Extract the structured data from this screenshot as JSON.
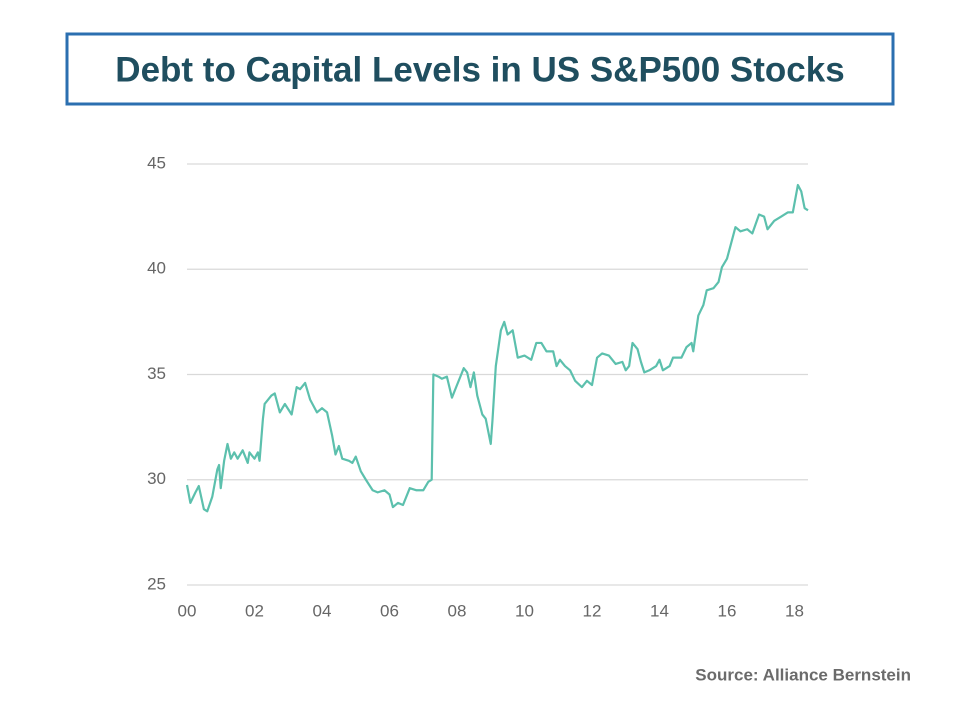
{
  "chart_data": {
    "type": "line",
    "title": "Debt to Capital Levels in US S&P500 Stocks",
    "source": "Source: Alliance Bernstein",
    "xlim": [
      0,
      18.4
    ],
    "xticks": [
      {
        "value": 0,
        "label": "00"
      },
      {
        "value": 2,
        "label": "02"
      },
      {
        "value": 4,
        "label": "04"
      },
      {
        "value": 6,
        "label": "06"
      },
      {
        "value": 8,
        "label": "08"
      },
      {
        "value": 10,
        "label": "10"
      },
      {
        "value": 12,
        "label": "12"
      },
      {
        "value": 14,
        "label": "14"
      },
      {
        "value": 16,
        "label": "16"
      },
      {
        "value": 18,
        "label": "18"
      }
    ],
    "ylim": [
      25,
      45
    ],
    "yticks": [
      25,
      30,
      35,
      40,
      45
    ],
    "grid": true,
    "series": [
      {
        "color": "#5cc0ad",
        "x": [
          0,
          0.1,
          0.25,
          0.35,
          0.5,
          0.6,
          0.75,
          0.9,
          0.95,
          1.0,
          1.1,
          1.2,
          1.3,
          1.4,
          1.5,
          1.65,
          1.8,
          1.85,
          2.0,
          2.1,
          2.15,
          2.25,
          2.3,
          2.5,
          2.6,
          2.75,
          2.9,
          3.1,
          3.25,
          3.35,
          3.5,
          3.65,
          3.85,
          4.0,
          4.15,
          4.3,
          4.4,
          4.5,
          4.6,
          4.8,
          4.9,
          5.0,
          5.15,
          5.3,
          5.5,
          5.65,
          5.85,
          6.0,
          6.1,
          6.25,
          6.4,
          6.6,
          6.8,
          7.0,
          7.15,
          7.25,
          7.3,
          7.45,
          7.55,
          7.7,
          7.85,
          8.0,
          8.1,
          8.2,
          8.3,
          8.4,
          8.5,
          8.6,
          8.75,
          8.85,
          9.0,
          9.05,
          9.15,
          9.3,
          9.4,
          9.5,
          9.65,
          9.8,
          10.0,
          10.2,
          10.35,
          10.5,
          10.65,
          10.85,
          10.95,
          11.05,
          11.2,
          11.35,
          11.5,
          11.7,
          11.85,
          12.0,
          12.15,
          12.3,
          12.5,
          12.7,
          12.9,
          13.0,
          13.1,
          13.2,
          13.35,
          13.45,
          13.55,
          13.7,
          13.9,
          14.0,
          14.1,
          14.3,
          14.4,
          14.65,
          14.8,
          14.95,
          15.0,
          15.15,
          15.3,
          15.4,
          15.6,
          15.75,
          15.85,
          16.0,
          16.15,
          16.25,
          16.4,
          16.6,
          16.75,
          16.95,
          17.1,
          17.2,
          17.4,
          17.6,
          17.8,
          17.95,
          18.1,
          18.2,
          18.3,
          18.4
        ],
        "values": [
          29.75,
          28.9,
          29.4,
          29.7,
          28.6,
          28.5,
          29.2,
          30.5,
          30.7,
          29.6,
          30.9,
          31.7,
          31.0,
          31.3,
          31.0,
          31.4,
          30.8,
          31.3,
          31.0,
          31.3,
          30.9,
          32.9,
          33.6,
          34.0,
          34.1,
          33.2,
          33.6,
          33.1,
          34.4,
          34.3,
          34.6,
          33.8,
          33.2,
          33.4,
          33.2,
          32.1,
          31.2,
          31.6,
          31.0,
          30.9,
          30.8,
          31.1,
          30.4,
          30.0,
          29.5,
          29.4,
          29.5,
          29.3,
          28.7,
          28.9,
          28.8,
          29.6,
          29.5,
          29.5,
          29.9,
          30.0,
          35.0,
          34.9,
          34.8,
          34.9,
          33.9,
          34.5,
          34.9,
          35.3,
          35.1,
          34.4,
          35.1,
          34.0,
          33.1,
          32.9,
          31.7,
          32.8,
          35.4,
          37.1,
          37.5,
          36.9,
          37.1,
          35.8,
          35.9,
          35.7,
          36.5,
          36.5,
          36.1,
          36.1,
          35.4,
          35.7,
          35.4,
          35.2,
          34.7,
          34.4,
          34.7,
          34.5,
          35.8,
          36.0,
          35.9,
          35.5,
          35.6,
          35.2,
          35.4,
          36.5,
          36.2,
          35.6,
          35.1,
          35.2,
          35.4,
          35.7,
          35.2,
          35.4,
          35.8,
          35.8,
          36.3,
          36.5,
          36.1,
          37.8,
          38.3,
          39.0,
          39.1,
          39.4,
          40.1,
          40.5,
          41.4,
          42.0,
          41.8,
          41.9,
          41.7,
          42.6,
          42.5,
          41.9,
          42.3,
          42.5,
          42.7,
          42.7,
          44.0,
          43.7,
          42.9,
          42.8
        ]
      }
    ]
  }
}
